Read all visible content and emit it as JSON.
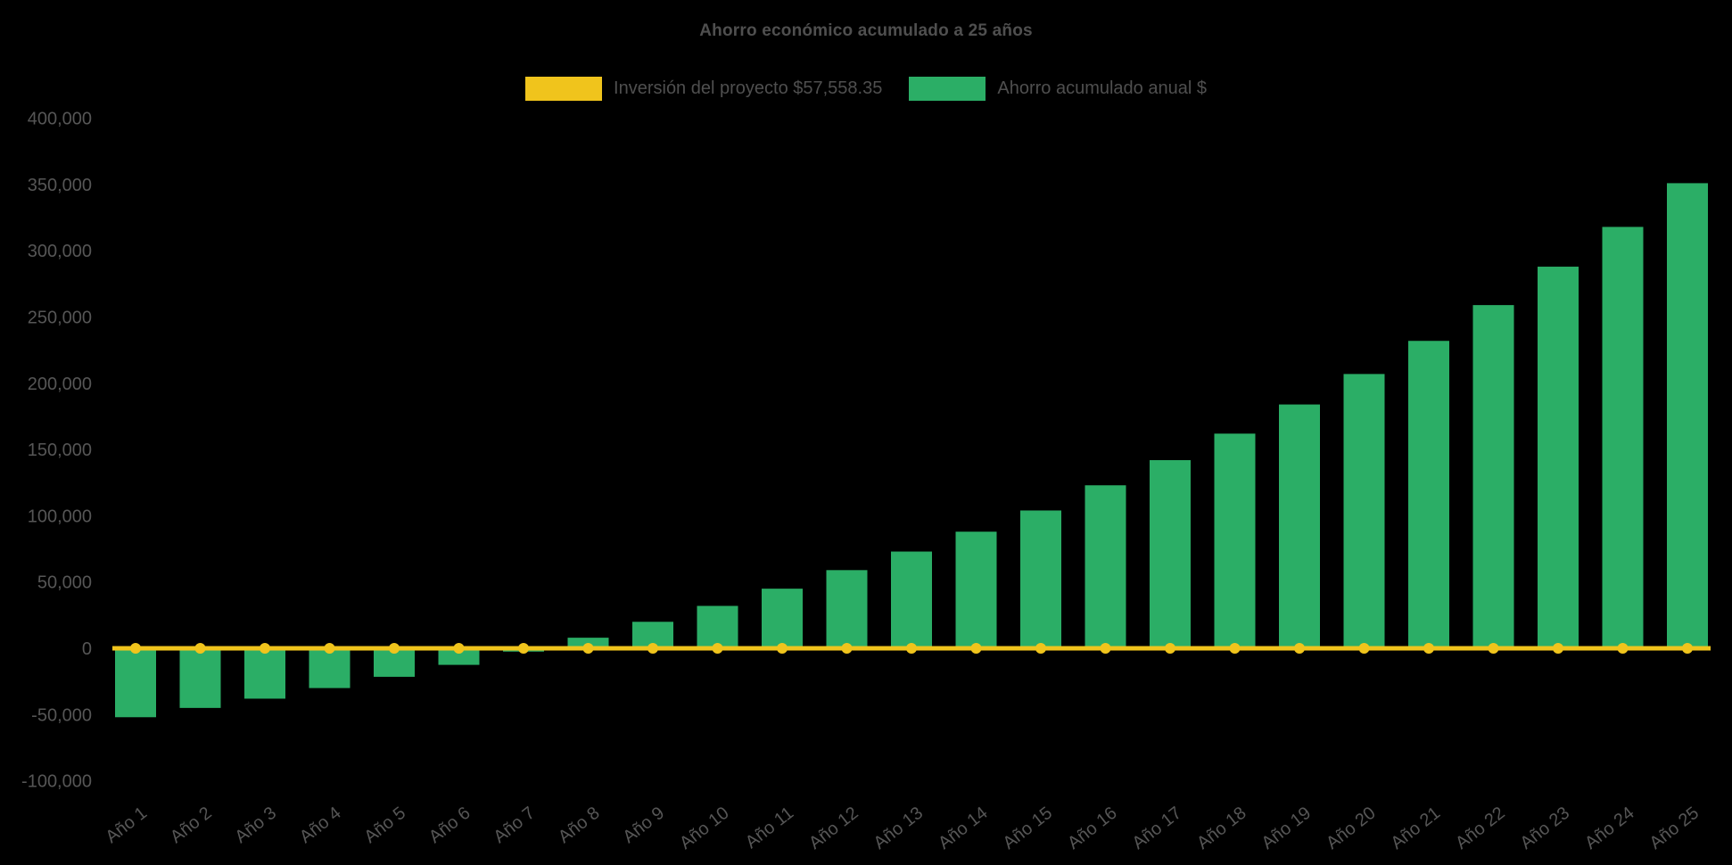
{
  "page": {
    "background": "#000000",
    "text_color": "#565656",
    "title_color": "#4f4f4f"
  },
  "chart_data": {
    "type": "bar",
    "title": "Ahorro económico acumulado a 25 años",
    "xlabel": "",
    "ylabel": "",
    "grid": false,
    "legend_position": "top",
    "ylim": [
      -100000,
      400000
    ],
    "ytick_step": 50000,
    "categories": [
      "Año 1",
      "Año 2",
      "Año 3",
      "Año 4",
      "Año 5",
      "Año 6",
      "Año 7",
      "Año 8",
      "Año 9",
      "Año 10",
      "Año 11",
      "Año 12",
      "Año 13",
      "Año 14",
      "Año 15",
      "Año 16",
      "Año 17",
      "Año 18",
      "Año 19",
      "Año 20",
      "Año 21",
      "Año 22",
      "Año 23",
      "Año 24",
      "Año 25"
    ],
    "series": [
      {
        "name": "Inversión del proyecto $57,558.35",
        "type": "line",
        "color": "#f0c41c",
        "values": [
          0,
          0,
          0,
          0,
          0,
          0,
          0,
          0,
          0,
          0,
          0,
          0,
          0,
          0,
          0,
          0,
          0,
          0,
          0,
          0,
          0,
          0,
          0,
          0,
          0
        ]
      },
      {
        "name": "Ahorro acumulado anual $",
        "type": "bar",
        "color": "#2bae66",
        "values": [
          -52000,
          -45000,
          -38000,
          -30000,
          -21500,
          -12500,
          -2500,
          8000,
          20000,
          32000,
          45000,
          59000,
          73000,
          88000,
          104000,
          123000,
          142000,
          162000,
          184000,
          207000,
          232000,
          259000,
          288000,
          318000,
          351000
        ]
      }
    ]
  }
}
